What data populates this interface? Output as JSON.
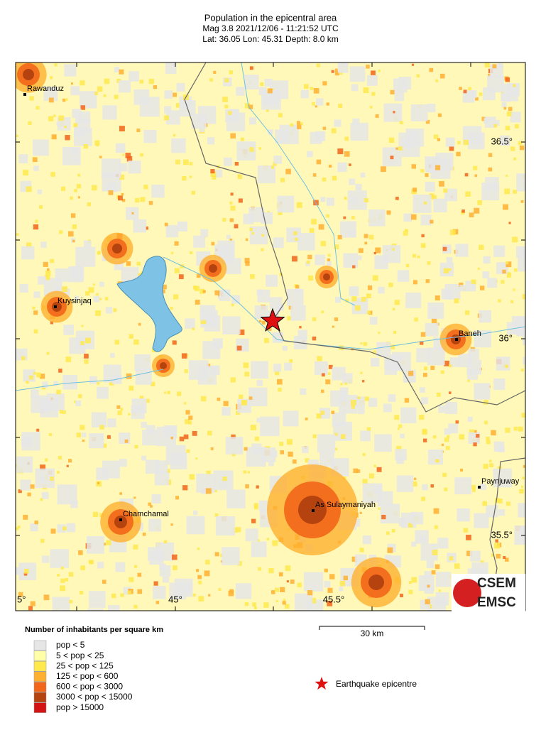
{
  "header": {
    "title": "Population in the epicentral area",
    "line2": "Mag 3.8  2021/12/06 - 11:21:52 UTC",
    "line3": "Lat: 36.05    Lon:  45.31     Depth:  8.0 km"
  },
  "map": {
    "cities": [
      "Rawanduz",
      "Kuysinjaq",
      "Baneh",
      "Paynjuway",
      "As Sulaymaniyah",
      "Chamchamal"
    ],
    "lat_labels": [
      "36.5°",
      "36°",
      "35.5°"
    ],
    "lon_labels": [
      "5°",
      "45°",
      "45.5°"
    ]
  },
  "legend": {
    "title": "Number of inhabitants per square km",
    "items": [
      {
        "label": "pop < 5",
        "color": "#e6e6e6"
      },
      {
        "label": "5 < pop < 25",
        "color": "#ffffa8"
      },
      {
        "label": "25 < pop < 125",
        "color": "#ffe94d"
      },
      {
        "label": "125 < pop < 600",
        "color": "#ffb030"
      },
      {
        "label": "600 < pop < 3000",
        "color": "#f2661a"
      },
      {
        "label": "3000 < pop < 15000",
        "color": "#b5430f"
      },
      {
        "label": "pop > 15000",
        "color": "#d41414"
      }
    ]
  },
  "scale_bar": "30 km",
  "epicentre_label": "Earthquake epicentre",
  "logo": [
    "CSEM",
    "EMSC"
  ]
}
